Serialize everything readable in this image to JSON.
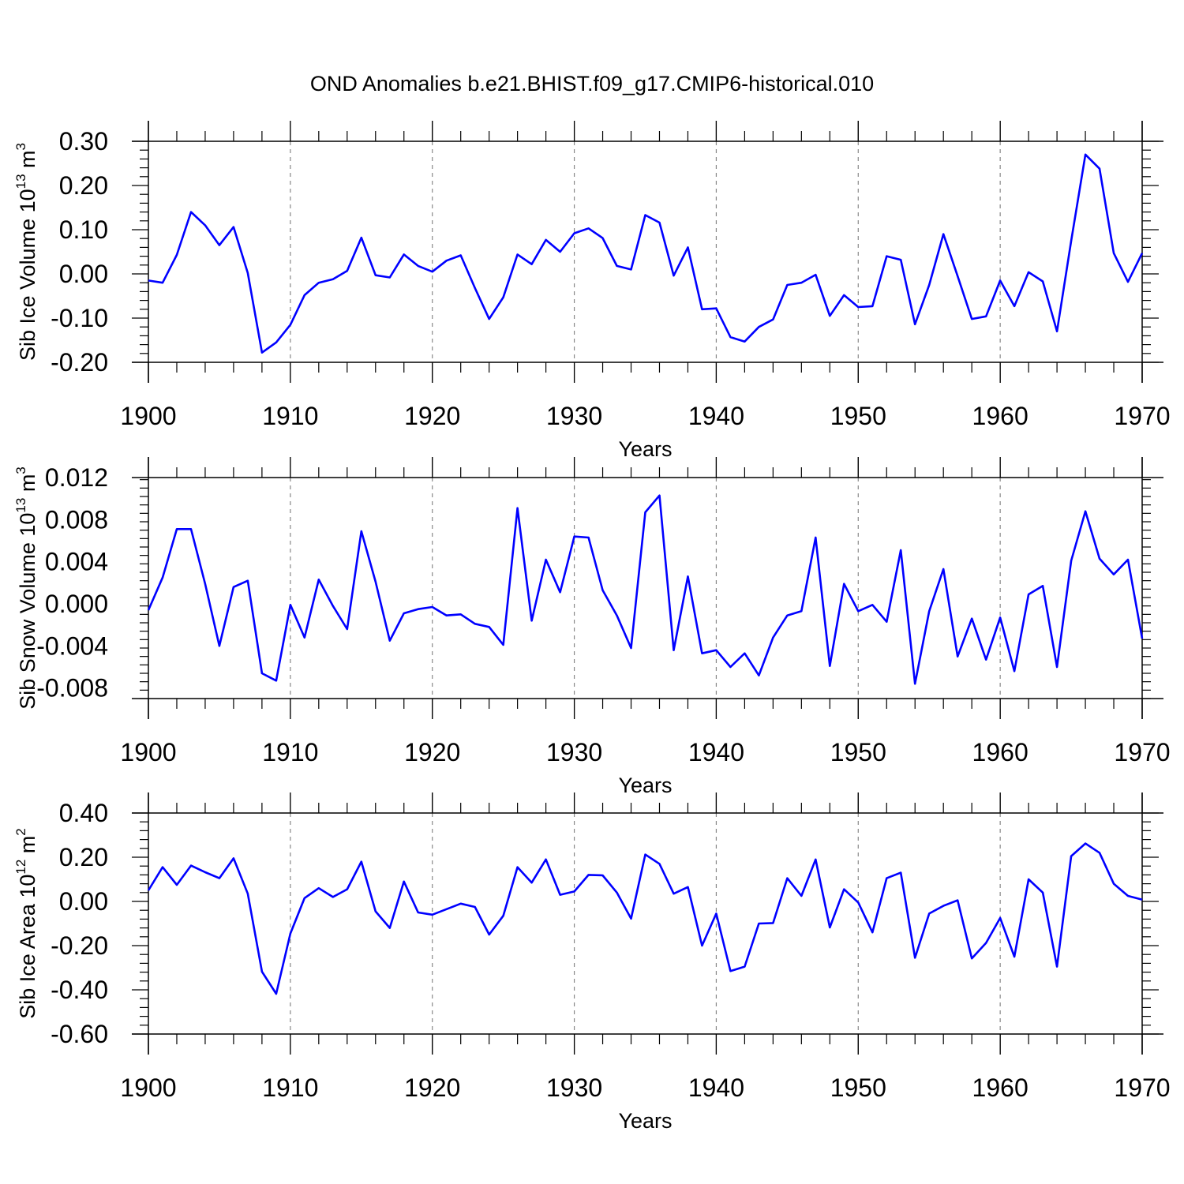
{
  "title": "OND Anomalies b.e21.BHIST.f09_g17.CMIP6-historical.010",
  "colors": {
    "series": "#0000ff",
    "axes": "#000000",
    "grid": "#888888"
  },
  "chart_data": [
    {
      "type": "line",
      "ylabel": {
        "text": "Sib Ice Volume 10",
        "sup": "13",
        "unit": " m",
        "unit_sup": "3"
      },
      "xlabel": "Years",
      "xlim": [
        1900,
        1970
      ],
      "ylim": [
        -0.2,
        0.3
      ],
      "xticks": [
        1900,
        1910,
        1920,
        1930,
        1940,
        1950,
        1960,
        1970
      ],
      "xtick_labels": [
        "1900",
        "1910",
        "1920",
        "1930",
        "1940",
        "1950",
        "1960",
        "1970"
      ],
      "yticks": [
        -0.2,
        -0.1,
        0.0,
        0.1,
        0.2,
        0.3
      ],
      "ytick_labels": [
        "-0.20",
        "-0.10",
        "0.00",
        "0.10",
        "0.20",
        "0.30"
      ],
      "grid": "vertical dashed at major x ticks",
      "series": [
        {
          "x": [
            1900,
            1901,
            1902,
            1903,
            1904,
            1905,
            1906,
            1907,
            1908,
            1909,
            1910,
            1911,
            1912,
            1913,
            1914,
            1915,
            1916,
            1917,
            1918,
            1919,
            1920,
            1921,
            1922,
            1923,
            1924,
            1925,
            1926,
            1927,
            1928,
            1929,
            1930,
            1931,
            1932,
            1933,
            1934,
            1935,
            1936,
            1937,
            1938,
            1939,
            1940,
            1941,
            1942,
            1943,
            1944,
            1945,
            1946,
            1947,
            1948,
            1949,
            1950,
            1951,
            1952,
            1953,
            1954,
            1955,
            1956,
            1957,
            1958,
            1959,
            1960,
            1961,
            1962,
            1963,
            1964,
            1965,
            1966,
            1967,
            1968,
            1969,
            1970
          ],
          "values": [
            -0.015,
            -0.02,
            0.043,
            0.14,
            0.11,
            0.065,
            0.106,
            0.002,
            -0.178,
            -0.155,
            -0.115,
            -0.048,
            -0.02,
            -0.012,
            0.007,
            0.082,
            -0.003,
            -0.008,
            0.044,
            0.018,
            0.005,
            0.03,
            0.042,
            -0.032,
            -0.102,
            -0.053,
            0.044,
            0.022,
            0.077,
            0.05,
            0.092,
            0.103,
            0.081,
            0.018,
            0.01,
            0.133,
            0.116,
            -0.004,
            0.06,
            -0.08,
            -0.078,
            -0.143,
            -0.153,
            -0.12,
            -0.103,
            -0.025,
            -0.02,
            -0.002,
            -0.095,
            -0.048,
            -0.075,
            -0.073,
            0.04,
            0.032,
            -0.114,
            -0.025,
            0.09,
            -0.005,
            -0.102,
            -0.096,
            -0.015,
            -0.073,
            0.004,
            -0.017,
            -0.13,
            0.075,
            0.27,
            0.238,
            0.047,
            -0.018,
            0.047
          ]
        }
      ]
    },
    {
      "type": "line",
      "ylabel": {
        "text": "Sib Snow Volume 10",
        "sup": "13",
        "unit": " m",
        "unit_sup": "3"
      },
      "xlabel": "Years",
      "xlim": [
        1900,
        1970
      ],
      "ylim": [
        -0.009,
        0.012
      ],
      "xticks": [
        1900,
        1910,
        1920,
        1930,
        1940,
        1950,
        1960,
        1970
      ],
      "xtick_labels": [
        "1900",
        "1910",
        "1920",
        "1930",
        "1940",
        "1950",
        "1960",
        "1970"
      ],
      "yticks": [
        -0.008,
        -0.004,
        0.0,
        0.004,
        0.008,
        0.012
      ],
      "ytick_labels": [
        "-0.008",
        "-0.004",
        "0.000",
        "0.004",
        "0.008",
        "0.012"
      ],
      "grid": "vertical dashed at major x ticks",
      "series": [
        {
          "x": [
            1900,
            1901,
            1902,
            1903,
            1904,
            1905,
            1906,
            1907,
            1908,
            1909,
            1910,
            1911,
            1912,
            1913,
            1914,
            1915,
            1916,
            1917,
            1918,
            1919,
            1920,
            1921,
            1922,
            1923,
            1924,
            1925,
            1926,
            1927,
            1928,
            1929,
            1930,
            1931,
            1932,
            1933,
            1934,
            1935,
            1936,
            1937,
            1938,
            1939,
            1940,
            1941,
            1942,
            1943,
            1944,
            1945,
            1946,
            1947,
            1948,
            1949,
            1950,
            1951,
            1952,
            1953,
            1954,
            1955,
            1956,
            1957,
            1958,
            1959,
            1960,
            1961,
            1962,
            1963,
            1964,
            1965,
            1966,
            1967,
            1968,
            1969,
            1970
          ],
          "values": [
            -0.0006,
            0.0025,
            0.0071,
            0.0071,
            0.0019,
            -0.004,
            0.0016,
            0.0022,
            -0.0066,
            -0.0073,
            -0.0001,
            -0.0032,
            0.0023,
            -0.0002,
            -0.0024,
            0.0069,
            0.0021,
            -0.0035,
            -0.0009,
            -0.0005,
            -0.0003,
            -0.0011,
            -0.001,
            -0.0019,
            -0.0022,
            -0.0039,
            0.0091,
            -0.0016,
            0.0042,
            0.0011,
            0.0064,
            0.0063,
            0.0013,
            -0.0011,
            -0.0042,
            0.0087,
            0.0103,
            -0.0044,
            0.0026,
            -0.0047,
            -0.0044,
            -0.006,
            -0.0047,
            -0.0068,
            -0.0032,
            -0.0011,
            -0.0007,
            0.0063,
            -0.0059,
            0.0019,
            -0.0007,
            -0.0001,
            -0.0017,
            0.0051,
            -0.0076,
            -0.0007,
            0.0033,
            -0.005,
            -0.0014,
            -0.0053,
            -0.0013,
            -0.0064,
            0.0009,
            0.0017,
            -0.006,
            0.0041,
            0.0088,
            0.0043,
            0.0028,
            0.0042,
            -0.0033
          ]
        }
      ]
    },
    {
      "type": "line",
      "ylabel": {
        "text": "Sib Ice Area 10",
        "sup": "12",
        "unit": " m",
        "unit_sup": "2"
      },
      "xlabel": "Years",
      "xlim": [
        1900,
        1970
      ],
      "ylim": [
        -0.6,
        0.4
      ],
      "xticks": [
        1900,
        1910,
        1920,
        1930,
        1940,
        1950,
        1960,
        1970
      ],
      "xtick_labels": [
        "1900",
        "1910",
        "1920",
        "1930",
        "1940",
        "1950",
        "1960",
        "1970"
      ],
      "yticks": [
        -0.6,
        -0.4,
        -0.2,
        0.0,
        0.2,
        0.4
      ],
      "ytick_labels": [
        "-0.60",
        "-0.40",
        "-0.20",
        "0.00",
        "0.20",
        "0.40"
      ],
      "grid": "vertical dashed at major x ticks",
      "series": [
        {
          "x": [
            1900,
            1901,
            1902,
            1903,
            1904,
            1905,
            1906,
            1907,
            1908,
            1909,
            1910,
            1911,
            1912,
            1913,
            1914,
            1915,
            1916,
            1917,
            1918,
            1919,
            1920,
            1921,
            1922,
            1923,
            1924,
            1925,
            1926,
            1927,
            1928,
            1929,
            1930,
            1931,
            1932,
            1933,
            1934,
            1935,
            1936,
            1937,
            1938,
            1939,
            1940,
            1941,
            1942,
            1943,
            1944,
            1945,
            1946,
            1947,
            1948,
            1949,
            1950,
            1951,
            1952,
            1953,
            1954,
            1955,
            1956,
            1957,
            1958,
            1959,
            1960,
            1961,
            1962,
            1963,
            1964,
            1965,
            1966,
            1967,
            1968,
            1969,
            1970
          ],
          "values": [
            0.05,
            0.155,
            0.075,
            0.162,
            0.132,
            0.105,
            0.195,
            0.035,
            -0.318,
            -0.418,
            -0.145,
            0.015,
            0.06,
            0.02,
            0.055,
            0.18,
            -0.045,
            -0.12,
            0.09,
            -0.05,
            -0.06,
            -0.035,
            -0.01,
            -0.025,
            -0.15,
            -0.065,
            0.155,
            0.085,
            0.19,
            0.03,
            0.045,
            0.12,
            0.118,
            0.04,
            -0.078,
            0.212,
            0.17,
            0.035,
            0.065,
            -0.2,
            -0.055,
            -0.315,
            -0.295,
            -0.1,
            -0.098,
            0.105,
            0.025,
            0.19,
            -0.118,
            0.055,
            -0.005,
            -0.14,
            0.105,
            0.13,
            -0.255,
            -0.055,
            -0.02,
            0.005,
            -0.258,
            -0.188,
            -0.075,
            -0.25,
            0.1,
            0.04,
            -0.295,
            0.205,
            0.262,
            0.22,
            0.08,
            0.025,
            0.008
          ]
        }
      ]
    }
  ]
}
